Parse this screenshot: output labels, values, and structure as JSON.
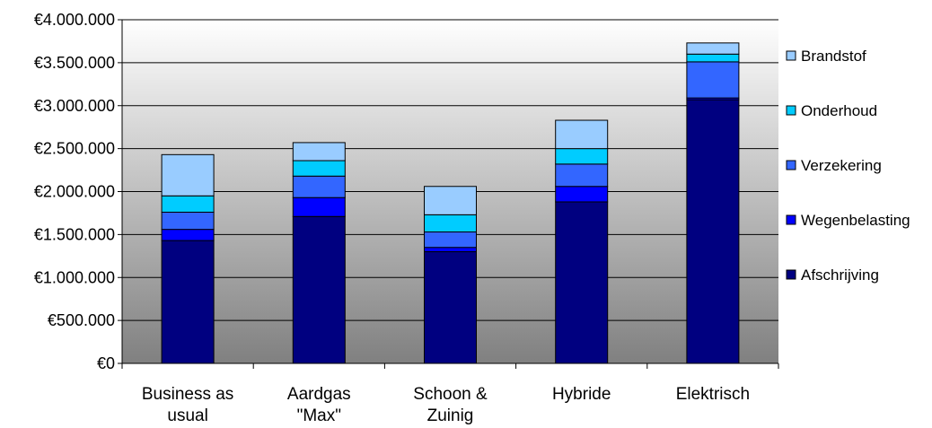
{
  "chart_data": {
    "type": "bar",
    "stacked": true,
    "title": "",
    "xlabel": "",
    "ylabel": "",
    "ylim": [
      0,
      4000000
    ],
    "y_ticks": [
      {
        "value": 0,
        "label": "€0"
      },
      {
        "value": 500000,
        "label": "€500.000"
      },
      {
        "value": 1000000,
        "label": "€1.000.000"
      },
      {
        "value": 1500000,
        "label": "€1.500.000"
      },
      {
        "value": 2000000,
        "label": "€2.000.000"
      },
      {
        "value": 2500000,
        "label": "€2.500.000"
      },
      {
        "value": 3000000,
        "label": "€3.000.000"
      },
      {
        "value": 3500000,
        "label": "€3.500.000"
      },
      {
        "value": 4000000,
        "label": "€4.000.000"
      }
    ],
    "grid": true,
    "legend_position": "right",
    "categories": [
      [
        "Business as",
        "usual"
      ],
      [
        "Aardgas",
        "\"Max\""
      ],
      [
        "Schoon &",
        "Zuinig"
      ],
      [
        "Hybride"
      ],
      [
        "Elektrisch"
      ]
    ],
    "series": [
      {
        "name": "Afschrijving",
        "color": "#000080",
        "values": [
          1430000,
          1710000,
          1300000,
          1880000,
          3070000
        ]
      },
      {
        "name": "Wegenbelasting",
        "color": "#0000FF",
        "values": [
          130000,
          220000,
          50000,
          180000,
          20000
        ]
      },
      {
        "name": "Verzekering",
        "color": "#3366FF",
        "values": [
          200000,
          250000,
          180000,
          260000,
          420000
        ]
      },
      {
        "name": "Onderhoud",
        "color": "#00CCFF",
        "values": [
          190000,
          180000,
          200000,
          180000,
          90000
        ]
      },
      {
        "name": "Brandstof",
        "color": "#99CCFF",
        "values": [
          480000,
          210000,
          330000,
          330000,
          130000
        ]
      }
    ]
  }
}
